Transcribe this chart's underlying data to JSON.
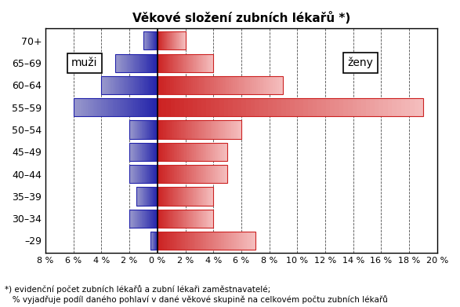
{
  "title": "Věkové složení zubních lékařů *)",
  "age_groups": [
    "–29",
    "30–34",
    "35–39",
    "40–44",
    "45–49",
    "50–54",
    "55–59",
    "60–64",
    "65–69",
    "70+"
  ],
  "muzi": [
    0.5,
    2.0,
    1.5,
    2.0,
    2.0,
    2.0,
    6.0,
    4.0,
    3.0,
    1.0
  ],
  "zeny": [
    7.0,
    4.0,
    4.0,
    5.0,
    5.0,
    6.0,
    19.0,
    9.0,
    4.0,
    2.0
  ],
  "xlim": [
    -8,
    20
  ],
  "xticks": [
    -8,
    -6,
    -4,
    -2,
    0,
    2,
    4,
    6,
    8,
    10,
    12,
    14,
    16,
    18,
    20
  ],
  "xtick_labels": [
    "8 %",
    "6 %",
    "4 %",
    "2 %",
    "0 %",
    "2 %",
    "4 %",
    "6 %",
    "8 %",
    "10 %",
    "12 %",
    "14 %",
    "16 %",
    "18 %",
    "20 %"
  ],
  "footnote": "*) evidenční počet zubních lékařů a zubní lékaři zaměstnavatelé;\n   % vyjadřuje podíl daného pohlaví v dané věkové skupině na celkovém počtu zubních lékařů",
  "muzi_color_light": "#9999cc",
  "muzi_color_dark": "#2222aa",
  "zeny_color_light": "#f5c0c0",
  "zeny_color_dark": "#cc2222",
  "bar_height": 0.82,
  "background_color": "#ffffff"
}
